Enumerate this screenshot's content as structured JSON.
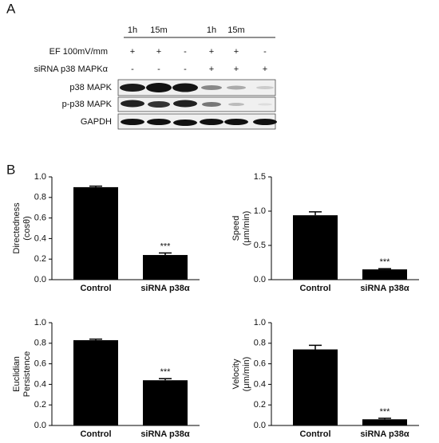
{
  "panels": [
    "A",
    "B"
  ],
  "blot": {
    "time_headers": [
      "1h",
      "15m",
      null,
      "1h",
      "15m",
      null
    ],
    "conditions": [
      {
        "label": "EF 100mV/mm",
        "signs": [
          "+",
          "+",
          "-",
          "+",
          "+",
          "-"
        ]
      },
      {
        "label": "siRNA p38 MAPKα",
        "signs": [
          "-",
          "-",
          "-",
          "+",
          "+",
          "+"
        ]
      }
    ],
    "bands": [
      "p38 MAPK",
      "p-p38 MAPK",
      "GAPDH"
    ]
  },
  "chart_data": [
    {
      "type": "bar",
      "ylabel": [
        "Directedness",
        "(cosθ)"
      ],
      "categories": [
        "Control",
        "siRNA p38α"
      ],
      "values": [
        0.9,
        0.24
      ],
      "errors": [
        0.01,
        0.02
      ],
      "annotation": "***",
      "color": "#000000",
      "ylim": [
        0,
        1.0
      ],
      "yticks": [
        {
          "value": 0,
          "label": "0.0"
        },
        0.2,
        0.4,
        0.6,
        0.8,
        {
          "value": 1,
          "label": "1.0"
        }
      ]
    },
    {
      "type": "bar",
      "ylabel": [
        "Speed",
        "(μm/min)"
      ],
      "categories": [
        "Control",
        "siRNA p38α"
      ],
      "values": [
        0.94,
        0.15
      ],
      "errors": [
        0.05,
        0.01
      ],
      "annotation": "***",
      "color": "#000000",
      "ylim": [
        0,
        1.5
      ],
      "yticks": [
        {
          "value": 0,
          "label": "0.0"
        },
        0.5,
        {
          "value": 1,
          "label": "1.0"
        },
        1.5
      ]
    },
    {
      "type": "bar",
      "ylabel": [
        "Euclidian",
        "Persistence"
      ],
      "categories": [
        "Control",
        "siRNA p38α"
      ],
      "values": [
        0.83,
        0.44
      ],
      "errors": [
        0.01,
        0.015
      ],
      "annotation": "***",
      "color": "#000000",
      "ylim": [
        0,
        1.0
      ],
      "yticks": [
        {
          "value": 0,
          "label": "0.0"
        },
        0.2,
        0.4,
        0.6,
        0.8,
        {
          "value": 1,
          "label": "1.0"
        }
      ]
    },
    {
      "type": "bar",
      "ylabel": [
        "Velocity",
        "(μm/min)"
      ],
      "categories": [
        "Control",
        "siRNA p38α"
      ],
      "values": [
        0.74,
        0.06
      ],
      "errors": [
        0.04,
        0.01
      ],
      "annotation": "***",
      "color": "#000000",
      "ylim": [
        0,
        1.0
      ],
      "yticks": [
        {
          "value": 0,
          "label": "0.0"
        },
        0.2,
        0.4,
        0.6,
        0.8,
        {
          "value": 1,
          "label": "1.0"
        }
      ]
    }
  ]
}
